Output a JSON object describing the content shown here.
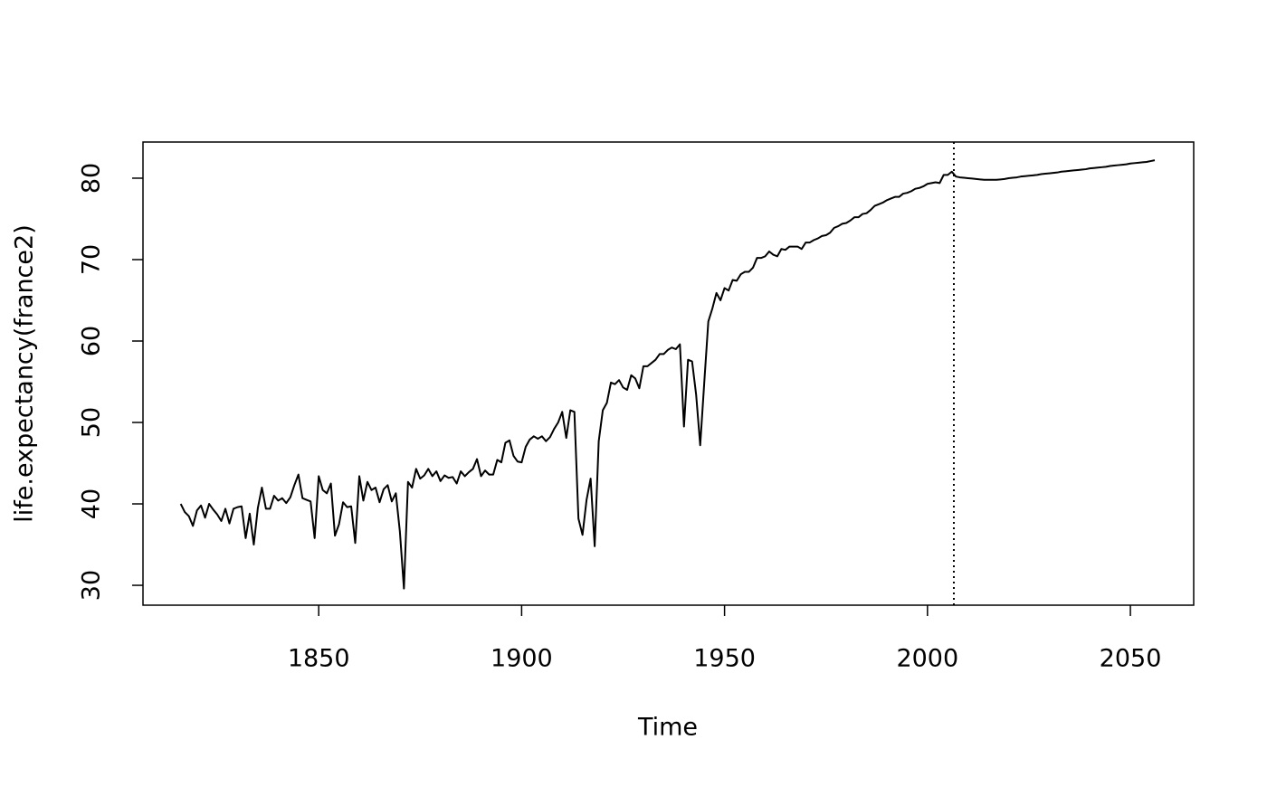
{
  "chart_data": {
    "type": "line",
    "xlabel": "Time",
    "ylabel": "life.expectancy(france2)",
    "x": [
      1816,
      1817,
      1818,
      1819,
      1820,
      1821,
      1822,
      1823,
      1824,
      1825,
      1826,
      1827,
      1828,
      1829,
      1830,
      1831,
      1832,
      1833,
      1834,
      1835,
      1836,
      1837,
      1838,
      1839,
      1840,
      1841,
      1842,
      1843,
      1844,
      1845,
      1846,
      1847,
      1848,
      1849,
      1850,
      1851,
      1852,
      1853,
      1854,
      1855,
      1856,
      1857,
      1858,
      1859,
      1860,
      1861,
      1862,
      1863,
      1864,
      1865,
      1866,
      1867,
      1868,
      1869,
      1870,
      1871,
      1872,
      1873,
      1874,
      1875,
      1876,
      1877,
      1878,
      1879,
      1880,
      1881,
      1882,
      1883,
      1884,
      1885,
      1886,
      1887,
      1888,
      1889,
      1890,
      1891,
      1892,
      1893,
      1894,
      1895,
      1896,
      1897,
      1898,
      1899,
      1900,
      1901,
      1902,
      1903,
      1904,
      1905,
      1906,
      1907,
      1908,
      1909,
      1910,
      1911,
      1912,
      1913,
      1914,
      1915,
      1916,
      1917,
      1918,
      1919,
      1920,
      1921,
      1922,
      1923,
      1924,
      1925,
      1926,
      1927,
      1928,
      1929,
      1930,
      1931,
      1932,
      1933,
      1934,
      1935,
      1936,
      1937,
      1938,
      1939,
      1940,
      1941,
      1942,
      1943,
      1944,
      1945,
      1946,
      1947,
      1948,
      1949,
      1950,
      1951,
      1952,
      1953,
      1954,
      1955,
      1956,
      1957,
      1958,
      1959,
      1960,
      1961,
      1962,
      1963,
      1964,
      1965,
      1966,
      1967,
      1968,
      1969,
      1970,
      1971,
      1972,
      1973,
      1974,
      1975,
      1976,
      1977,
      1978,
      1979,
      1980,
      1981,
      1982,
      1983,
      1984,
      1985,
      1986,
      1987,
      1988,
      1989,
      1990,
      1991,
      1992,
      1993,
      1994,
      1995,
      1996,
      1997,
      1998,
      1999,
      2000,
      2001,
      2002,
      2003,
      2004,
      2005,
      2006,
      2007,
      2008,
      2009,
      2010,
      2011,
      2012,
      2013,
      2014,
      2015,
      2016,
      2017,
      2018,
      2019,
      2020,
      2021,
      2022,
      2023,
      2024,
      2025,
      2026,
      2027,
      2028,
      2029,
      2030,
      2031,
      2032,
      2033,
      2034,
      2035,
      2036,
      2037,
      2038,
      2039,
      2040,
      2041,
      2042,
      2043,
      2044,
      2045,
      2046,
      2047,
      2048,
      2049,
      2050,
      2051,
      2052,
      2053,
      2054,
      2055,
      2056
    ],
    "values": [
      40.0,
      39.0,
      38.5,
      37.3,
      39.2,
      39.8,
      38.3,
      40.0,
      39.3,
      38.7,
      37.9,
      39.4,
      37.6,
      39.4,
      39.6,
      39.7,
      35.8,
      38.8,
      35.0,
      39.5,
      42.0,
      39.4,
      39.4,
      41.0,
      40.4,
      40.7,
      40.1,
      40.8,
      42.3,
      43.6,
      40.7,
      40.5,
      40.3,
      35.8,
      43.4,
      41.7,
      41.3,
      42.5,
      36.1,
      37.5,
      40.2,
      39.6,
      39.7,
      35.2,
      43.4,
      40.4,
      42.7,
      41.7,
      42.0,
      40.2,
      41.8,
      42.3,
      40.3,
      41.3,
      36.6,
      29.6,
      42.7,
      42.0,
      44.3,
      43.1,
      43.5,
      44.3,
      43.4,
      44.0,
      42.8,
      43.5,
      43.2,
      43.3,
      42.5,
      44.0,
      43.4,
      43.9,
      44.3,
      45.5,
      43.4,
      44.1,
      43.6,
      43.6,
      45.4,
      45.1,
      47.5,
      47.8,
      45.9,
      45.2,
      45.1,
      47.0,
      47.9,
      48.3,
      48.0,
      48.3,
      47.7,
      48.2,
      49.2,
      50.0,
      51.3,
      48.1,
      51.5,
      51.3,
      38.2,
      36.2,
      40.5,
      43.1,
      34.8,
      47.7,
      51.5,
      52.4,
      54.9,
      54.7,
      55.2,
      54.3,
      54.0,
      55.8,
      55.4,
      54.2,
      56.9,
      56.9,
      57.3,
      57.7,
      58.4,
      58.4,
      58.9,
      59.2,
      59.0,
      59.6,
      49.5,
      57.7,
      57.5,
      53.4,
      47.2,
      54.9,
      62.4,
      64.0,
      65.9,
      65.0,
      66.5,
      66.2,
      67.5,
      67.4,
      68.2,
      68.5,
      68.5,
      69.0,
      70.2,
      70.2,
      70.4,
      71.0,
      70.6,
      70.4,
      71.3,
      71.2,
      71.6,
      71.6,
      71.6,
      71.3,
      72.1,
      72.1,
      72.4,
      72.6,
      72.9,
      73.0,
      73.3,
      73.9,
      74.1,
      74.4,
      74.5,
      74.8,
      75.2,
      75.2,
      75.6,
      75.7,
      76.1,
      76.6,
      76.8,
      77.0,
      77.3,
      77.5,
      77.7,
      77.7,
      78.1,
      78.2,
      78.4,
      78.7,
      78.8,
      79.0,
      79.3,
      79.4,
      79.5,
      79.4,
      80.4,
      80.4,
      80.8,
      80.2,
      80.1,
      80.05,
      80.0,
      79.95,
      79.9,
      79.85,
      79.8,
      79.8,
      79.8,
      79.8,
      79.85,
      79.9,
      80.0,
      80.05,
      80.1,
      80.2,
      80.25,
      80.3,
      80.35,
      80.4,
      80.5,
      80.55,
      80.6,
      80.65,
      80.7,
      80.8,
      80.85,
      80.9,
      80.95,
      81.0,
      81.05,
      81.1,
      81.2,
      81.25,
      81.3,
      81.35,
      81.4,
      81.5,
      81.55,
      81.6,
      81.65,
      81.7,
      81.8,
      81.85,
      81.9,
      81.95,
      82.0,
      82.1,
      82.2
    ],
    "color": "#000000",
    "vline": 2006.5,
    "xlim": [
      1806.7,
      2065.6
    ],
    "xticks": [
      1850,
      1900,
      1950,
      2000,
      2050
    ],
    "ylim": [
      27.56,
      84.44
    ],
    "yticks": [
      30,
      40,
      50,
      60,
      70,
      80
    ]
  }
}
